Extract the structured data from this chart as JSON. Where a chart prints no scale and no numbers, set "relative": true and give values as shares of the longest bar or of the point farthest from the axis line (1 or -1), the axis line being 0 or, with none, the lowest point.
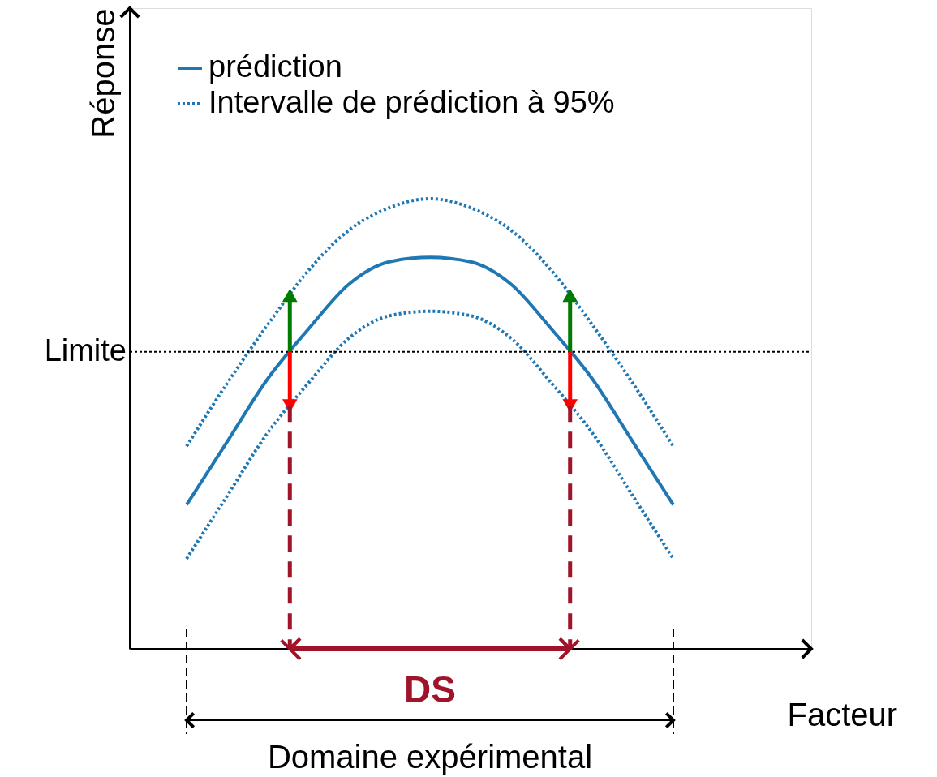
{
  "chart_data": {
    "type": "line",
    "relative": true,
    "xlabel": "Facteur",
    "ylabel": "Réponse",
    "categories": [
      null,
      null,
      null,
      null,
      null,
      null,
      null,
      null,
      null,
      null,
      null,
      null,
      null
    ],
    "series": [
      {
        "name": "prédiction",
        "color": "#1f77b4",
        "line_style": "solid",
        "values": [
          0.32,
          0.46,
          0.6,
          0.71,
          0.81,
          0.86,
          0.87,
          0.86,
          0.81,
          0.71,
          0.6,
          0.46,
          0.32
        ]
      },
      {
        "name": "Intervalle de prédiction à 95%",
        "color": "#1f77b4",
        "line_style": "dotted",
        "values": [
          0.45,
          0.59,
          0.72,
          0.84,
          0.93,
          0.98,
          1.0,
          0.98,
          0.93,
          0.84,
          0.72,
          0.59,
          0.45
        ]
      },
      {
        "color": "#1f77b4",
        "line_style": "dotted",
        "values": [
          0.2,
          0.34,
          0.48,
          0.59,
          0.69,
          0.74,
          0.75,
          0.74,
          0.69,
          0.59,
          0.48,
          0.34,
          0.2
        ]
      }
    ],
    "ref_lines": [
      {
        "axis": "y",
        "value": 0.66,
        "label": "Limite",
        "color": "#000000",
        "line_style": "dotted"
      }
    ],
    "annotations": [
      "DS",
      "Domaine expérimental"
    ],
    "legend": "top left",
    "grid": false
  }
}
